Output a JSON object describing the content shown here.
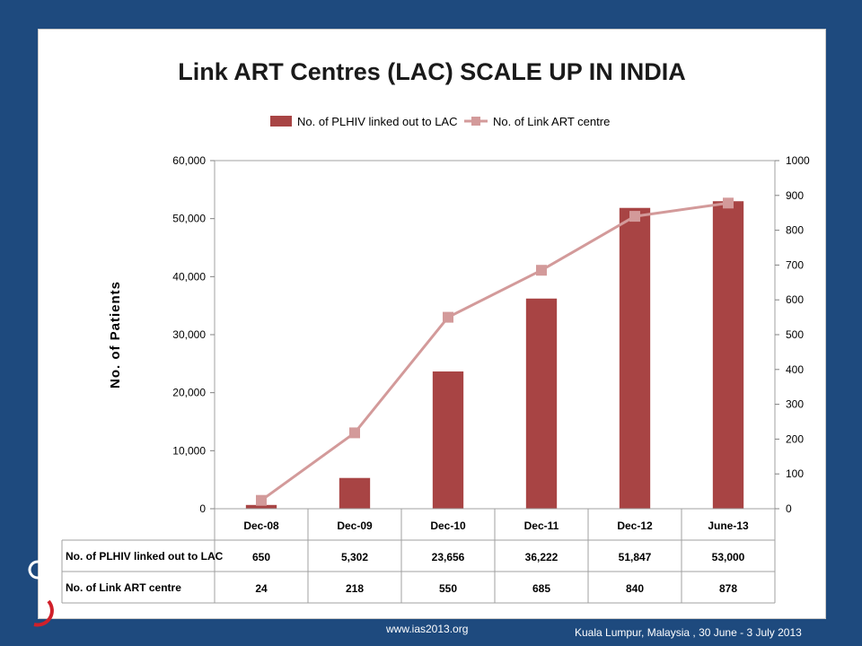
{
  "footer": {
    "website": "www.ias2013.org",
    "venue": "Kuala Lumpur, Malaysia , 30 June - 3 July 2013"
  },
  "colors": {
    "background": "#1e4a7e",
    "bar": "#a84444",
    "line": "#d39a9a"
  },
  "chart_data": {
    "type": "bar",
    "title": "Link ART Centres (LAC) SCALE UP IN INDIA",
    "categories": [
      "Dec-08",
      "Dec-09",
      "Dec-10",
      "Dec-11",
      "Dec-12",
      "June-13"
    ],
    "series": [
      {
        "name": "No. of PLHIV linked out to LAC",
        "type": "bar",
        "axis": "left",
        "values": [
          650,
          5302,
          23656,
          36222,
          51847,
          53000
        ],
        "table_values": [
          "650",
          "5,302",
          "23,656",
          "36,222",
          "51,847",
          "53,000"
        ]
      },
      {
        "name": "No. of Link ART centre",
        "type": "line",
        "axis": "right",
        "values": [
          24,
          218,
          550,
          685,
          840,
          878
        ],
        "table_values": [
          "24",
          "218",
          "550",
          "685",
          "840",
          "878"
        ]
      }
    ],
    "ylabel": "No. of Patients",
    "y_left": {
      "ylim": [
        0,
        60000
      ],
      "ticks": [
        "0",
        "10,000",
        "20,000",
        "30,000",
        "40,000",
        "50,000",
        "60,000"
      ]
    },
    "y_right": {
      "ylim": [
        0,
        1000
      ],
      "ticks": [
        "0",
        "100",
        "200",
        "300",
        "400",
        "500",
        "600",
        "700",
        "800",
        "900",
        "1000"
      ]
    },
    "legend_position": "top-center",
    "grid": false,
    "data_table": true
  }
}
